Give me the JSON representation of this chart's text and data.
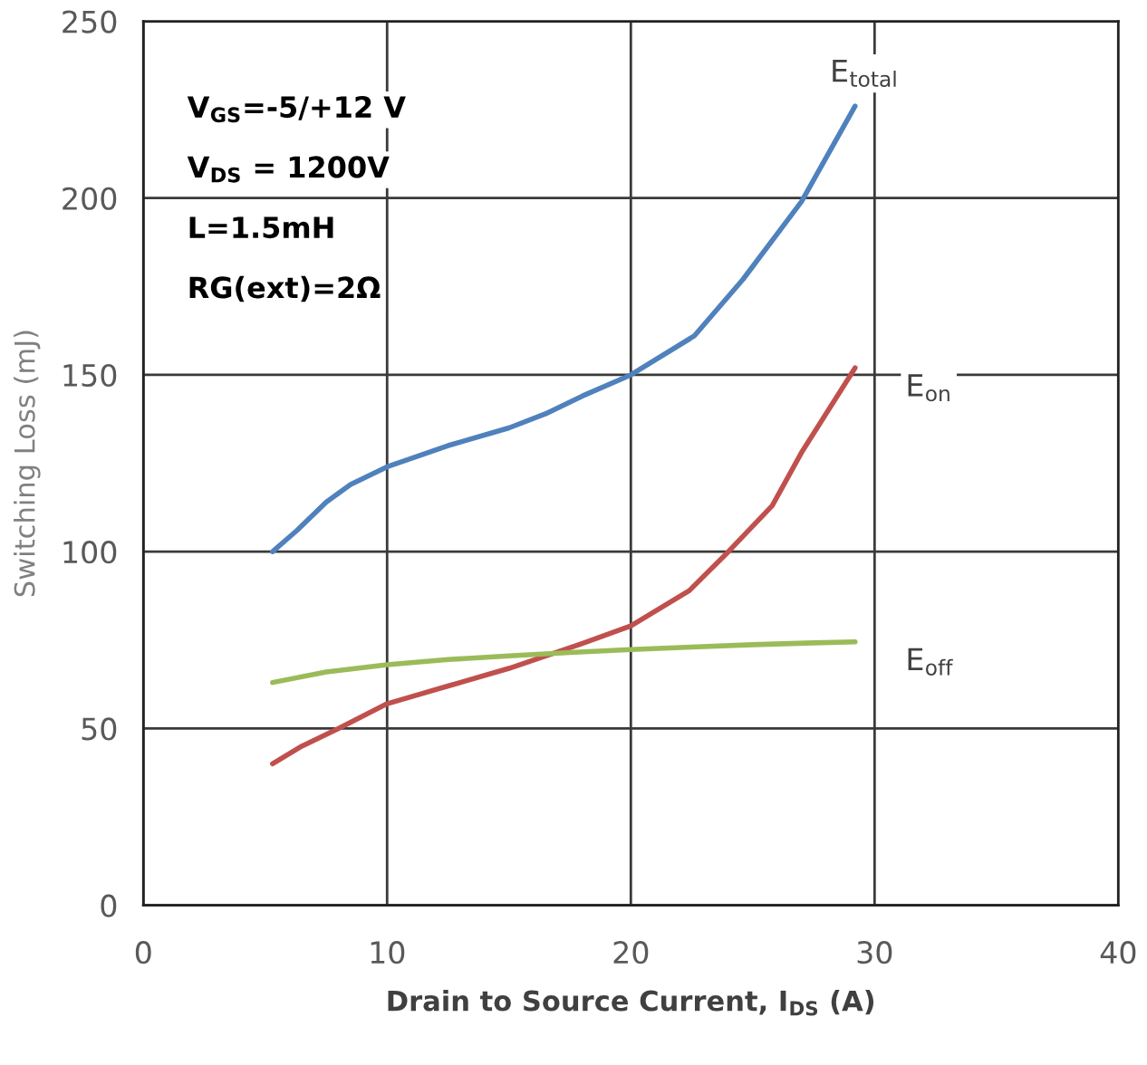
{
  "chart_data": {
    "type": "line",
    "xlabel": "Drain to Source Current, I$_{DS}$ (A)",
    "ylabel": "Switching Loss (mJ)",
    "xlim": [
      0,
      40
    ],
    "xticks": [
      0,
      10,
      20,
      30,
      40
    ],
    "ylim": [
      0,
      250
    ],
    "yticks": [
      0,
      50,
      100,
      150,
      200,
      250
    ],
    "grid": true,
    "annotations": [
      "V$_{GS}$=-5/+12 V",
      "V$_{DS}$ = 1200V",
      "L=1.5mH",
      "RG(ext)=2Ω"
    ],
    "series": [
      {
        "name": "E$_{total}$",
        "color": "#4f81bd",
        "x": [
          5.3,
          6.3,
          7.5,
          8.5,
          10,
          12.5,
          15,
          16.5,
          18,
          20,
          22.6,
          24.6,
          27,
          29.2
        ],
        "values": [
          100,
          106,
          114,
          119,
          124,
          130,
          135,
          139,
          144,
          150,
          161,
          177,
          199,
          226
        ]
      },
      {
        "name": "E$_{on}$",
        "color": "#c0504d",
        "x": [
          5.3,
          6.5,
          8,
          10,
          12.5,
          15,
          18,
          20,
          22.4,
          24,
          25.8,
          27,
          29.2
        ],
        "values": [
          40,
          45,
          50,
          57,
          62,
          67,
          74,
          79,
          89,
          100,
          113,
          128,
          152
        ]
      },
      {
        "name": "E$_{off}$",
        "color": "#9bbb59",
        "x": [
          5.3,
          7.5,
          10,
          12.5,
          15,
          17.5,
          20,
          22.5,
          25,
          27.5,
          29.2
        ],
        "values": [
          63,
          66,
          68,
          69.5,
          70.5,
          71.5,
          72.3,
          73,
          73.7,
          74.2,
          74.5
        ]
      }
    ]
  }
}
